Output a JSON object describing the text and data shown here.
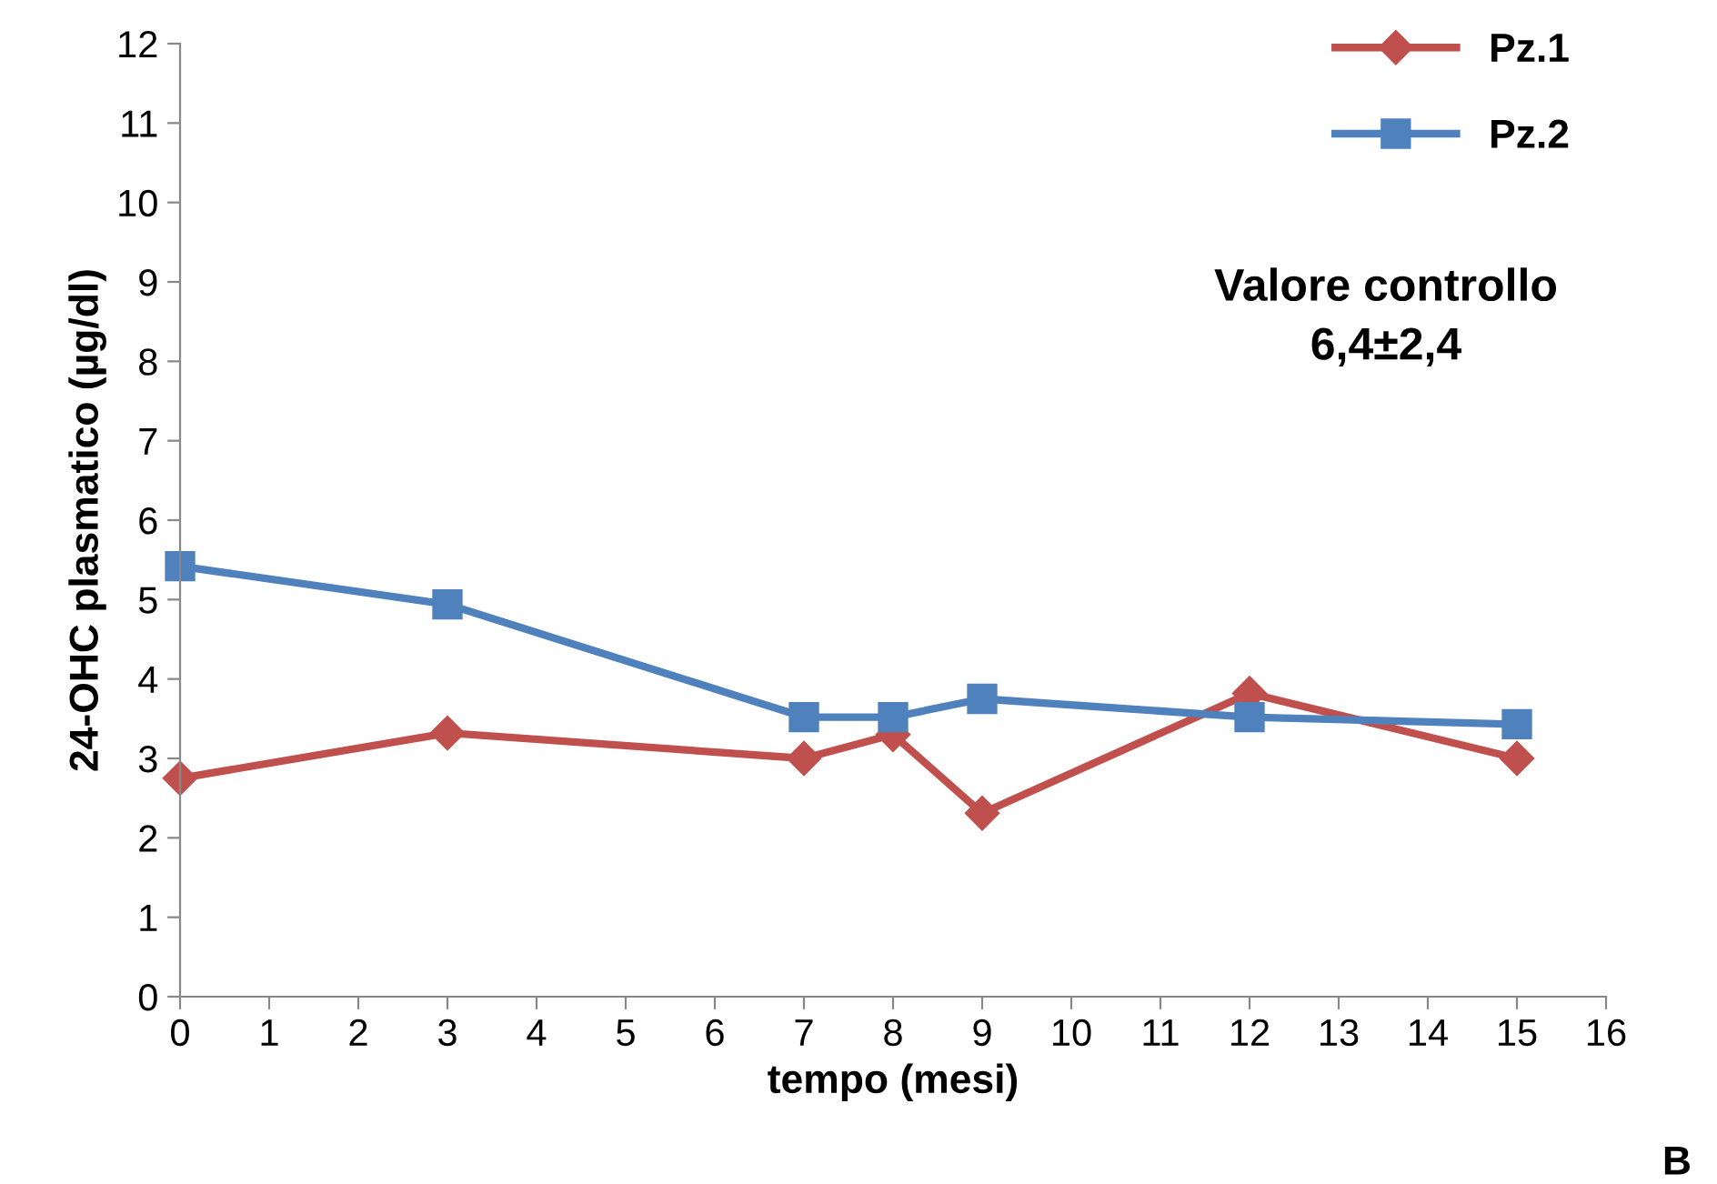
{
  "chart_data": {
    "type": "line",
    "xlabel": "tempo (mesi)",
    "ylabel": "24-OHC plasmatico (µg/dl)",
    "x": [
      0,
      3,
      7,
      8,
      9,
      12,
      15
    ],
    "series": [
      {
        "name": "Pz.1",
        "color": "#c0504d",
        "marker": "diamond",
        "values": [
          2.75,
          3.32,
          3.0,
          3.3,
          2.31,
          3.82,
          3.0
        ]
      },
      {
        "name": "Pz.2",
        "color": "#4f81bd",
        "marker": "square",
        "values": [
          5.42,
          4.94,
          3.52,
          3.52,
          3.75,
          3.52,
          3.43
        ]
      }
    ],
    "xlim": [
      0,
      16
    ],
    "xticks": [
      0,
      1,
      2,
      3,
      4,
      5,
      6,
      7,
      8,
      9,
      10,
      11,
      12,
      13,
      14,
      15,
      16
    ],
    "ylim": [
      0,
      12
    ],
    "yticks": [
      0,
      1,
      2,
      3,
      4,
      5,
      6,
      7,
      8,
      9,
      10,
      11,
      12
    ],
    "legend": "top right",
    "line_style": "solid",
    "annotations": [
      "Valore controllo\n6,4±2,4",
      "B"
    ]
  }
}
